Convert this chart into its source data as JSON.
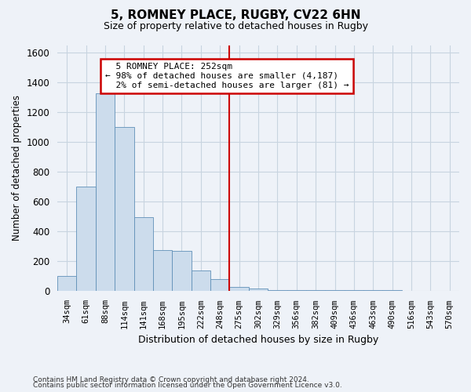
{
  "title": "5, ROMNEY PLACE, RUGBY, CV22 6HN",
  "subtitle": "Size of property relative to detached houses in Rugby",
  "xlabel": "Distribution of detached houses by size in Rugby",
  "ylabel": "Number of detached properties",
  "footnote1": "Contains HM Land Registry data © Crown copyright and database right 2024.",
  "footnote2": "Contains public sector information licensed under the Open Government Licence v3.0.",
  "bin_labels": [
    "34sqm",
    "61sqm",
    "88sqm",
    "114sqm",
    "141sqm",
    "168sqm",
    "195sqm",
    "222sqm",
    "248sqm",
    "275sqm",
    "302sqm",
    "329sqm",
    "356sqm",
    "382sqm",
    "409sqm",
    "436sqm",
    "463sqm",
    "490sqm",
    "516sqm",
    "543sqm",
    "570sqm"
  ],
  "bar_heights": [
    100,
    700,
    1325,
    1100,
    495,
    275,
    270,
    140,
    80,
    30,
    20,
    10,
    10,
    10,
    5,
    5,
    5,
    5,
    0,
    0,
    0
  ],
  "bar_color": "#ccdcec",
  "bar_edge_color": "#6090b8",
  "grid_color": "#c8d4e0",
  "bg_color": "#eef2f8",
  "vline_x": 8.5,
  "vline_color": "#cc0000",
  "annotation_text": "  5 ROMNEY PLACE: 252sqm\n← 98% of detached houses are smaller (4,187)\n  2% of semi-detached houses are larger (81) →",
  "annotation_box_color": "#ffffff",
  "annotation_border_color": "#cc0000",
  "ylim": [
    0,
    1650
  ],
  "yticks": [
    0,
    200,
    400,
    600,
    800,
    1000,
    1200,
    1400,
    1600
  ]
}
